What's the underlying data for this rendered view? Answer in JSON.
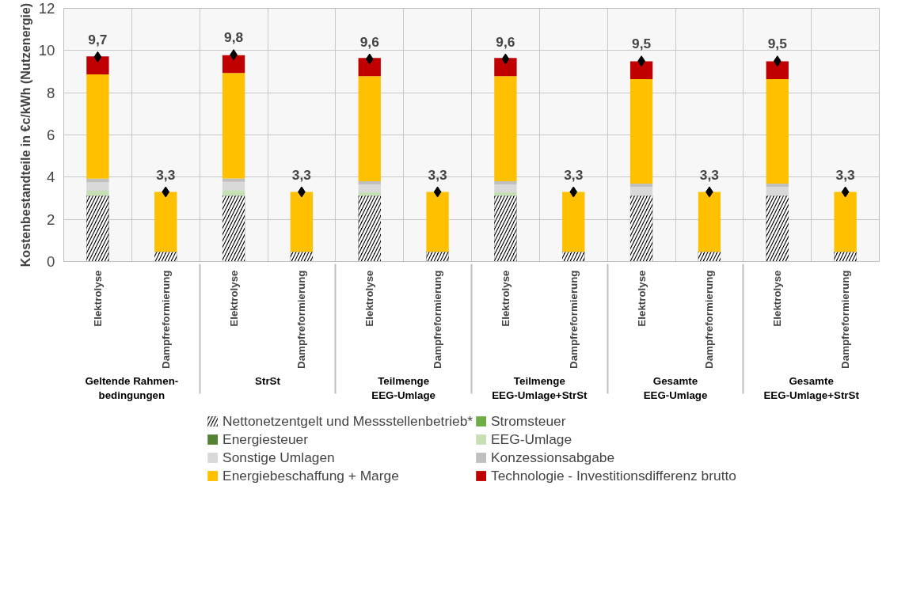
{
  "chart_data": {
    "type": "bar",
    "stacked": true,
    "ylabel": "Kostenbestandteile in €c/kWh (Nutzenergie)",
    "categories": [
      "Elektrolyse",
      "Dampfreformierung",
      "Elektrolyse",
      "Dampfreformierung",
      "Elektrolyse",
      "Dampfreformierung",
      "Elektrolyse",
      "Dampfreformierung",
      "Elektrolyse",
      "Dampfreformierung",
      "Elektrolyse",
      "Dampfreformierung"
    ],
    "annotations": [
      "Geltende Rahmen-\nbedingungen",
      "StrSt",
      "Teilmenge\nEEG-Umlage",
      "Teilmenge\nEEG-Umlage+StrSt",
      "Gesamte\nEEG-Umlage",
      "Gesamte\nEEG-Umlage+StrSt"
    ],
    "series": [
      {
        "name": "Nettonetzentgelt und Messstellenbetrieb*",
        "color": "#000000",
        "values": [
          3.12,
          0.46,
          3.12,
          0.46,
          3.12,
          0.46,
          3.12,
          0.46,
          3.12,
          0.46,
          3.12,
          0.46
        ]
      },
      {
        "name": "Stromsteuer",
        "color": "#70ad47",
        "values": [
          0,
          0,
          0,
          0,
          0,
          0,
          0,
          0,
          0,
          0,
          0,
          0
        ]
      },
      {
        "name": "Energiesteuer",
        "color": "#548235",
        "values": [
          0,
          0,
          0,
          0,
          0,
          0,
          0,
          0,
          0,
          0,
          0,
          0
        ]
      },
      {
        "name": "EEG-Umlage",
        "color": "#c5e0b4",
        "values": [
          0.24,
          0,
          0.26,
          0,
          0.16,
          0,
          0.16,
          0,
          0,
          0,
          0,
          0
        ]
      },
      {
        "name": "Sonstige Umlagen",
        "color": "#d9d9d9",
        "values": [
          0.4,
          0,
          0.4,
          0,
          0.38,
          0,
          0.38,
          0,
          0.42,
          0,
          0.42,
          0
        ]
      },
      {
        "name": "Konzessionsabgabe",
        "color": "#bfbfbf",
        "values": [
          0.17,
          0,
          0.16,
          0,
          0.15,
          0,
          0.15,
          0,
          0.15,
          0,
          0.15,
          0
        ]
      },
      {
        "name": "Energiebeschaffung + Marge",
        "color": "#ffc000",
        "values": [
          4.94,
          2.84,
          4.99,
          2.84,
          4.97,
          2.84,
          4.97,
          2.84,
          4.95,
          2.84,
          4.95,
          2.84
        ]
      },
      {
        "name": "Technologie - Investitionsdifferenz brutto",
        "color": "#c00000",
        "values": [
          0.85,
          0,
          0.85,
          0,
          0.87,
          0,
          0.87,
          0,
          0.85,
          0,
          0.85,
          0
        ]
      },
      {
        "type": "scatter",
        "color": "#000000",
        "values": [
          9.7,
          3.3,
          9.8,
          3.3,
          9.6,
          3.3,
          9.6,
          3.3,
          9.5,
          3.3,
          9.5,
          3.3
        ],
        "value_labels": [
          "9,7",
          "3,3",
          "9,8",
          "3,3",
          "9,6",
          "3,3",
          "9,6",
          "3,3",
          "9,5",
          "3,3",
          "9,5",
          "3,3"
        ]
      }
    ],
    "marker": "diamond",
    "ylim": [
      0,
      12
    ],
    "yticks": [
      0,
      2,
      4,
      6,
      8,
      10,
      12
    ],
    "grid": true,
    "legend": "bottom"
  }
}
